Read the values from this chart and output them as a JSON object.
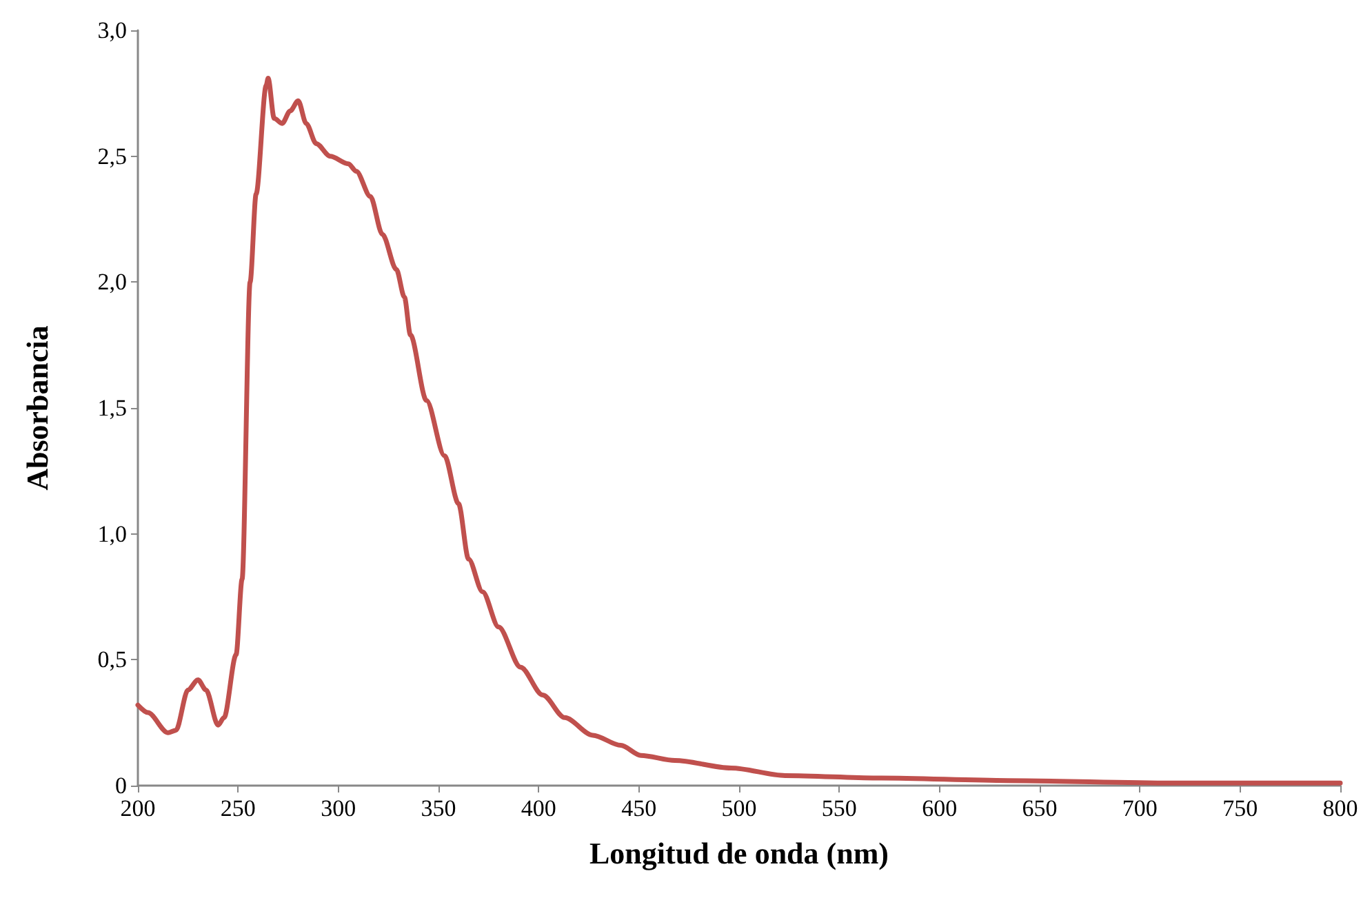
{
  "chart_data": {
    "type": "line",
    "xlabel": "Longitud de onda (nm)",
    "ylabel": "Absorbancia",
    "x": [
      200,
      205,
      215,
      219,
      225,
      230,
      234,
      240,
      243,
      249,
      252,
      256,
      259,
      264,
      265,
      268,
      272,
      276,
      280,
      284,
      289,
      296,
      305,
      309,
      316,
      322,
      329,
      333,
      336,
      344,
      353,
      360,
      365,
      372,
      380,
      391,
      402,
      413,
      427,
      441,
      451,
      468,
      496,
      523,
      571,
      634,
      716,
      800
    ],
    "series": [
      {
        "color": "#c0504d",
        "values": [
          0.32,
          0.29,
          0.21,
          0.22,
          0.38,
          0.42,
          0.38,
          0.24,
          0.27,
          0.52,
          0.82,
          2.0,
          2.35,
          2.78,
          2.81,
          2.65,
          2.63,
          2.68,
          2.72,
          2.63,
          2.55,
          2.5,
          2.47,
          2.44,
          2.34,
          2.19,
          2.05,
          1.94,
          1.79,
          1.53,
          1.31,
          1.12,
          0.9,
          0.77,
          0.63,
          0.47,
          0.36,
          0.27,
          0.2,
          0.16,
          0.12,
          0.1,
          0.07,
          0.04,
          0.03,
          0.02,
          0.01,
          0.01
        ]
      }
    ],
    "xlim": [
      200,
      800
    ],
    "xticks": [
      200,
      250,
      300,
      350,
      400,
      450,
      500,
      550,
      600,
      650,
      700,
      750,
      800
    ],
    "ylim": [
      0,
      3
    ],
    "yticks": [
      {
        "value": 0,
        "label": "0"
      },
      {
        "value": 0.5,
        "label": "0,5"
      },
      {
        "value": 1,
        "label": "1,0"
      },
      {
        "value": 1.5,
        "label": "1,5"
      },
      {
        "value": 2,
        "label": "2,0"
      },
      {
        "value": 2.5,
        "label": "2,5"
      },
      {
        "value": 3,
        "label": "3,0"
      }
    ],
    "grid": false,
    "marker": "none",
    "line_style": "solid"
  }
}
